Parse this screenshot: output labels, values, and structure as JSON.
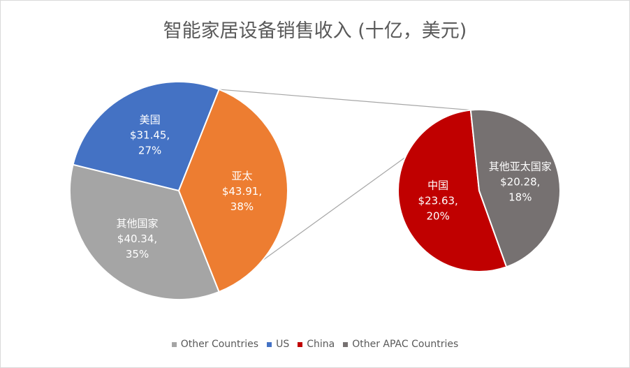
{
  "chart_data": {
    "type": "pie",
    "title": "智能家居设备销售收入 (十亿，美元)",
    "main_pie": [
      {
        "label": "其他国家",
        "value": 40.34,
        "value_text": "$40.34,",
        "percent_text": "35%",
        "color": "#a5a5a5"
      },
      {
        "label": "美国",
        "value": 31.45,
        "value_text": "$31.45,",
        "percent_text": "27%",
        "color": "#4472c4"
      },
      {
        "label": "亚太",
        "value": 43.91,
        "value_text": "$43.91,",
        "percent_text": "38%",
        "color": "#ed7d31"
      }
    ],
    "sub_pie": [
      {
        "label": "中国",
        "value": 23.63,
        "value_text": "$23.63,",
        "percent_text": "20%",
        "color": "#c00000"
      },
      {
        "label": "其他亚太国家",
        "value": 20.28,
        "value_text": "$20.28,",
        "percent_text": "18%",
        "color": "#767171"
      }
    ],
    "legend": [
      {
        "label": "Other Countries",
        "color": "#a5a5a5"
      },
      {
        "label": "US",
        "color": "#4472c4"
      },
      {
        "label": "China",
        "color": "#c00000"
      },
      {
        "label": "Other APAC Countries",
        "color": "#767171"
      }
    ],
    "legend_position": "bottom"
  }
}
